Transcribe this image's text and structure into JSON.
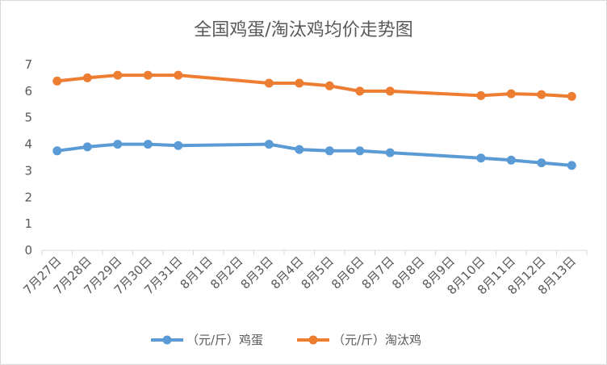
{
  "chart_data": {
    "type": "line",
    "title": "全国鸡蛋/淘汰鸡均价走势图",
    "categories": [
      "7月27日",
      "7月28日",
      "7月29日",
      "7月30日",
      "7月31日",
      "8月1日",
      "8月2日",
      "8月3日",
      "8月4日",
      "8月5日",
      "8月6日",
      "8月7日",
      "8月8日",
      "8月9日",
      "8月10日",
      "8月11日",
      "8月12日",
      "8月13日"
    ],
    "ylim": [
      0,
      7
    ],
    "yticks": [
      "0",
      "1",
      "2",
      "3",
      "4",
      "5",
      "6",
      "7"
    ],
    "grid": false,
    "legend": "bottom",
    "series": [
      {
        "name": "（元/斤）鸡蛋",
        "color": "#5B9BD5",
        "values": [
          3.75,
          3.9,
          4.0,
          4.0,
          3.95,
          null,
          null,
          4.0,
          3.8,
          3.75,
          3.75,
          3.68,
          null,
          null,
          3.48,
          3.4,
          3.3,
          3.2
        ]
      },
      {
        "name": "（元/斤）淘汰鸡",
        "color": "#ED7D31",
        "values": [
          6.38,
          6.5,
          6.6,
          6.6,
          6.6,
          null,
          null,
          6.3,
          6.3,
          6.2,
          6.0,
          6.0,
          null,
          null,
          5.83,
          5.9,
          5.87,
          5.8
        ]
      }
    ]
  }
}
